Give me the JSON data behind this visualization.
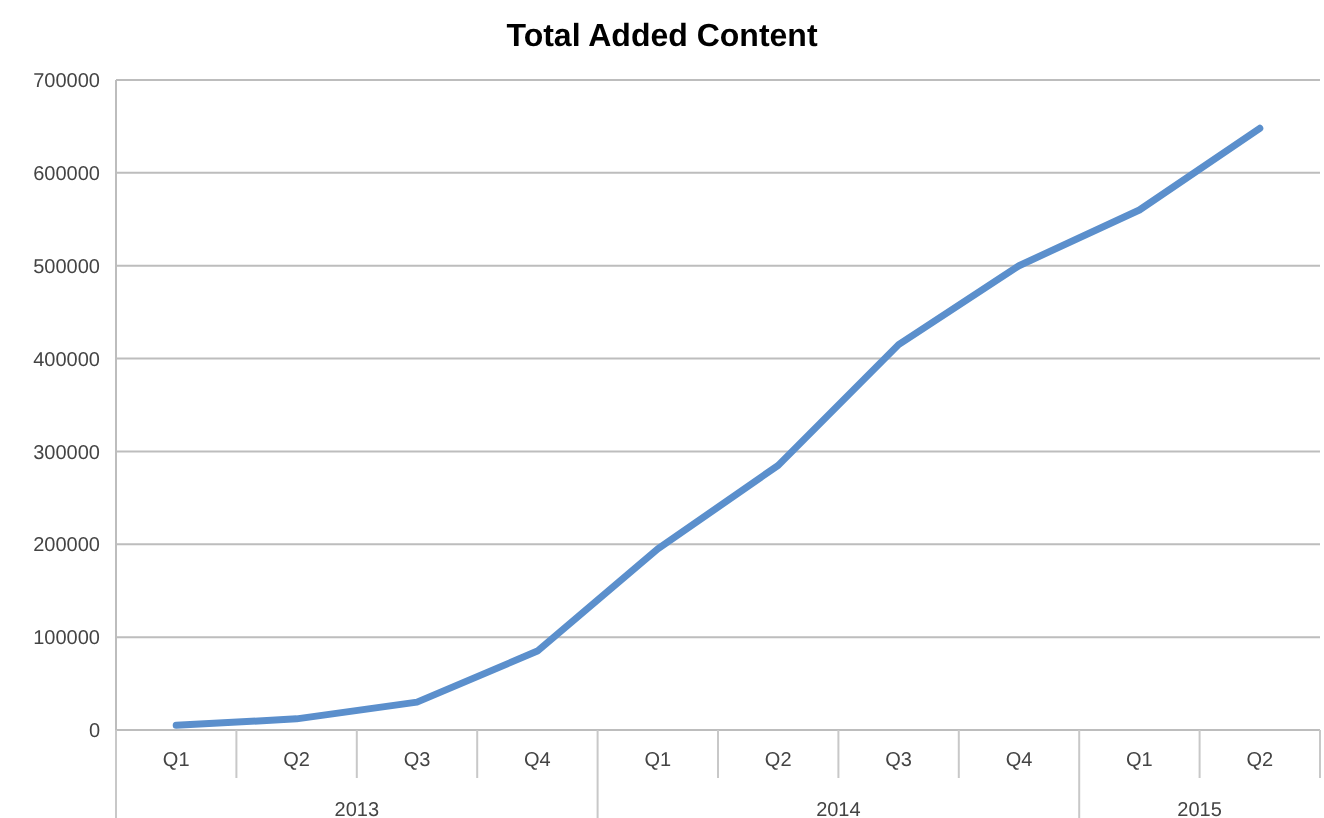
{
  "chart_data": {
    "type": "line",
    "title": "Total Added Content",
    "categories": [
      "Q1",
      "Q2",
      "Q3",
      "Q4",
      "Q1",
      "Q2",
      "Q3",
      "Q4",
      "Q1",
      "Q2"
    ],
    "series": [
      {
        "color": "#5b8fcc",
        "values": [
          5000,
          12000,
          30000,
          85000,
          195000,
          285000,
          415000,
          500000,
          560000,
          648000
        ]
      }
    ],
    "ylim": [
      0,
      700000
    ],
    "yticks": [
      0,
      100000,
      200000,
      300000,
      400000,
      500000,
      600000,
      700000
    ],
    "grid": "y",
    "marker": "none",
    "line_style": "solid",
    "annotations": [
      "2013",
      "2014",
      "2015"
    ]
  }
}
